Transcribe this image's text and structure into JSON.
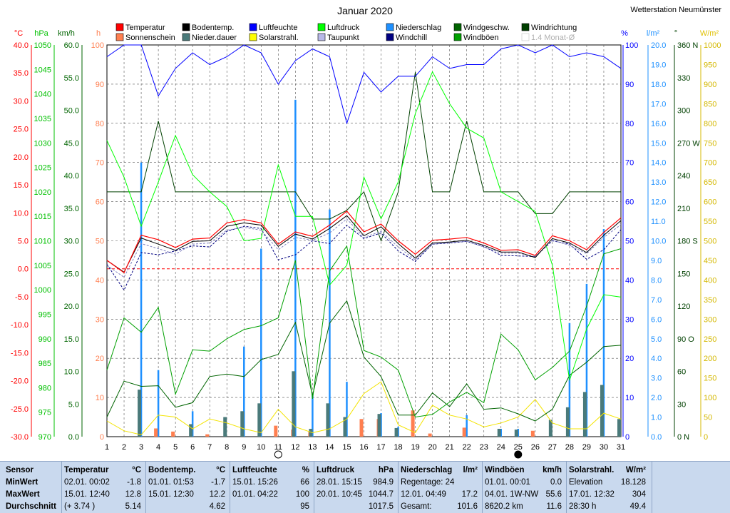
{
  "title": "Januar 2020",
  "station": "Wetterstation Neumünster",
  "legend": [
    {
      "label": "Temperatur",
      "color": "#ff0000"
    },
    {
      "label": "Sonnenschein",
      "color": "#ff7f50"
    },
    {
      "label": "Bodentemp.",
      "color": "#000000"
    },
    {
      "label": "Nieder.dauer",
      "color": "#4a7a7a"
    },
    {
      "label": "Luftfeuchte",
      "color": "#0000ff"
    },
    {
      "label": "Solarstrahl.",
      "color": "#ffff00"
    },
    {
      "label": "Luftdruck",
      "color": "#00ff00"
    },
    {
      "label": "Taupunkt",
      "color": "#b8b8e8"
    },
    {
      "label": "Niederschlag",
      "color": "#1e90ff"
    },
    {
      "label": "Windchill",
      "color": "#000080"
    },
    {
      "label": "Windgeschw.",
      "color": "#006400"
    },
    {
      "label": "Windböen",
      "color": "#00a000"
    },
    {
      "label": "Windrichtung",
      "color": "#004000"
    },
    {
      "label": "1.4 Monat-Ø",
      "color": "#c8c8c8"
    }
  ],
  "axis_units": {
    "temp": "°C",
    "press": "hPa",
    "wind": "km/h",
    "sun": "h",
    "hum": "%",
    "rain": "l/m²",
    "dir": "°",
    "solar": "W/m²"
  },
  "chart_data": {
    "type": "line",
    "x": [
      1,
      2,
      3,
      4,
      5,
      6,
      7,
      8,
      9,
      10,
      11,
      12,
      13,
      14,
      15,
      16,
      17,
      18,
      19,
      20,
      21,
      22,
      23,
      24,
      25,
      26,
      27,
      28,
      29,
      30,
      31
    ],
    "axes": {
      "temp": {
        "unit": "°C",
        "ylim": [
          -30,
          40
        ],
        "ticks": [
          "40.0",
          "35.0",
          "30.0",
          "25.0",
          "20.0",
          "15.0",
          "10.0",
          "5.0",
          "0.0",
          "-5.0",
          "-10.0",
          "-15.0",
          "-20.0",
          "-25.0",
          "-30.0"
        ]
      },
      "pressure": {
        "unit": "hPa",
        "ylim": [
          970,
          1050
        ],
        "ticks": [
          "1050",
          "1045",
          "1040",
          "1035",
          "1030",
          "1025",
          "1020",
          "1015",
          "1010",
          "1005",
          "1000",
          "995",
          "990",
          "985",
          "980",
          "975",
          "970"
        ]
      },
      "wind": {
        "unit": "km/h",
        "ylim": [
          0,
          60
        ],
        "ticks": [
          "60.0",
          "55.0",
          "50.0",
          "45.0",
          "40.0",
          "35.0",
          "30.0",
          "25.0",
          "20.0",
          "15.0",
          "10.0",
          "5.0",
          "0.0"
        ]
      },
      "sun": {
        "unit": "h",
        "ylim": [
          0,
          100
        ],
        "ticks": [
          "100",
          "90",
          "80",
          "70",
          "60",
          "50",
          "40",
          "30",
          "20",
          "10",
          "0"
        ]
      },
      "humidity": {
        "unit": "%",
        "ylim": [
          0,
          100
        ],
        "ticks": [
          "100",
          "90",
          "80",
          "70",
          "60",
          "50",
          "40",
          "30",
          "20",
          "10",
          "0"
        ]
      },
      "rain": {
        "unit": "l/m²",
        "ylim": [
          0,
          20
        ],
        "ticks": [
          "20.0",
          "19.0",
          "18.0",
          "17.0",
          "16.0",
          "15.0",
          "14.0",
          "13.0",
          "12.0",
          "11.0",
          "10.0",
          "9.0",
          "8.0",
          "7.0",
          "6.0",
          "5.0",
          "4.0",
          "3.0",
          "2.0",
          "1.0",
          "0.0"
        ]
      },
      "direction": {
        "unit": "°",
        "ylim": [
          0,
          360
        ],
        "ticks": [
          "360 N",
          "330",
          "300",
          "270 W",
          "240",
          "210",
          "180 S",
          "150",
          "120",
          "90 O",
          "60",
          "30",
          "0 N"
        ]
      },
      "solar": {
        "unit": "W/m²",
        "ylim": [
          0,
          1000
        ],
        "ticks": [
          "1000",
          "950",
          "900",
          "850",
          "800",
          "750",
          "700",
          "650",
          "600",
          "550",
          "500",
          "450",
          "400",
          "350",
          "300",
          "250",
          "200",
          "150",
          "100",
          "50",
          "0"
        ]
      }
    },
    "series": [
      {
        "name": "Temperatur",
        "axis": "temp",
        "color": "#ff0000",
        "values": [
          1.5,
          -0.7,
          6.0,
          5.2,
          3.8,
          5.3,
          5.5,
          8.2,
          8.8,
          8.2,
          4.4,
          6.6,
          5.8,
          7.8,
          10.3,
          6.6,
          8.0,
          5.0,
          2.6,
          5.1,
          5.3,
          5.6,
          4.6,
          3.3,
          3.4,
          2.4,
          5.9,
          5.0,
          3.4,
          6.5,
          9.1
        ]
      },
      {
        "name": "Bodentemp.",
        "axis": "temp",
        "color": "#000000",
        "values": [
          1.5,
          -0.6,
          5.5,
          4.4,
          3.3,
          4.9,
          5.0,
          7.6,
          8.2,
          7.8,
          4.0,
          6.2,
          5.3,
          7.2,
          9.5,
          5.9,
          7.5,
          4.5,
          1.9,
          4.6,
          4.8,
          5.1,
          4.2,
          3.0,
          3.0,
          2.0,
          5.4,
          4.6,
          2.9,
          6.0,
          8.6
        ]
      },
      {
        "name": "Taupunkt",
        "axis": "temp",
        "color": "#8080c0",
        "values": [
          0.6,
          -1.5,
          4.5,
          3.6,
          2.6,
          4.4,
          4.6,
          6.9,
          7.4,
          6.9,
          3.4,
          5.6,
          5.1,
          6.4,
          8.9,
          5.6,
          6.7,
          3.9,
          1.6,
          4.4,
          4.7,
          4.9,
          3.9,
          2.8,
          2.8,
          2.2,
          5.1,
          4.2,
          2.7,
          5.6,
          7.9
        ]
      },
      {
        "name": "Windchill",
        "axis": "temp",
        "color": "#000080",
        "values": [
          0.8,
          -3.8,
          2.9,
          2.5,
          3.2,
          4.1,
          3.9,
          6.7,
          7.6,
          7.2,
          1.6,
          2.5,
          5.0,
          4.5,
          7.8,
          5.4,
          6.4,
          3.2,
          1.3,
          4.4,
          4.6,
          4.9,
          4.0,
          2.4,
          2.3,
          2.2,
          5.0,
          4.4,
          1.7,
          3.4,
          7.0
        ]
      },
      {
        "name": "Luftdruck",
        "axis": "pressure",
        "color": "#00ff00",
        "values": [
          1030.5,
          1023,
          1013,
          1022,
          1031.5,
          1023.5,
          1020,
          1017,
          1010,
          1010.5,
          1025.5,
          1015,
          1015,
          1001,
          1005,
          1023,
          1014.5,
          1022,
          1036,
          1044.5,
          1038,
          1033,
          1031,
          1020,
          1018,
          1016,
          1005,
          981.5,
          992,
          999,
          998.5
        ]
      },
      {
        "name": "Luftfeuchte",
        "axis": "humidity",
        "color": "#0000ff",
        "values": [
          97,
          100,
          100,
          87,
          94,
          98,
          95,
          97,
          100,
          98,
          90,
          96,
          99,
          97,
          80,
          93,
          88,
          92,
          92,
          97,
          94,
          95,
          95,
          99,
          100,
          98,
          100,
          97,
          98,
          97,
          94
        ]
      },
      {
        "name": "Windgeschw.",
        "axis": "wind",
        "color": "#006400",
        "values": [
          3.0,
          8.5,
          7.7,
          7.8,
          4.5,
          5.2,
          9.2,
          9.6,
          9.2,
          11.8,
          12.6,
          17.5,
          6.3,
          17.4,
          20.8,
          12.2,
          9.2,
          3.3,
          3.3,
          6.7,
          4.6,
          8.1,
          4.2,
          4.4,
          3.5,
          2.4,
          4.2,
          9.4,
          11.4,
          13.8,
          14.0
        ]
      },
      {
        "name": "Windböen",
        "axis": "wind",
        "color": "#00a000",
        "values": [
          10.2,
          18.2,
          16.0,
          19.8,
          6.5,
          13.3,
          13.1,
          15.0,
          16.4,
          17.0,
          18.2,
          27.0,
          5.8,
          25.4,
          29.2,
          13.2,
          12.2,
          10.2,
          3.0,
          3.4,
          5.3,
          6.8,
          5.2,
          15.7,
          13.3,
          8.7,
          10.6,
          13.1,
          20.0,
          28.0,
          28.8
        ]
      },
      {
        "name": "Windrichtung",
        "axis": "direction",
        "color": "#004000",
        "values": [
          225,
          225,
          225,
          290,
          225,
          225,
          225,
          225,
          225,
          225,
          225,
          225,
          200,
          200,
          208,
          225,
          180,
          225,
          335,
          225,
          225,
          290,
          225,
          225,
          225,
          205,
          205,
          225,
          225,
          225,
          225
        ]
      },
      {
        "name": "Solarstrahl.",
        "axis": "solar",
        "color": "#f4e400",
        "values": [
          40,
          15,
          5,
          55,
          50,
          20,
          45,
          35,
          20,
          10,
          70,
          25,
          10,
          20,
          45,
          110,
          140,
          30,
          10,
          80,
          55,
          45,
          25,
          35,
          50,
          95,
          35,
          20,
          20,
          60,
          45
        ]
      }
    ],
    "bars": [
      {
        "name": "Niederschlag",
        "axis": "rain",
        "color": "#1e90ff",
        "values": [
          0,
          0,
          14.0,
          3.4,
          0,
          1.3,
          0,
          0,
          4.6,
          9.6,
          0,
          17.2,
          2.2,
          11.6,
          2.8,
          0,
          1.2,
          0.5,
          0,
          0,
          0,
          1.1,
          0,
          0.4,
          0.4,
          0,
          0,
          5.8,
          7.8,
          10.6,
          0
        ]
      },
      {
        "name": "Sonnenschein",
        "axis": "sun",
        "color": "#ff7f50",
        "values": [
          0,
          0,
          0,
          2.1,
          1.3,
          0,
          0.6,
          0,
          0,
          0,
          2.8,
          1.8,
          1.2,
          0,
          0,
          4.5,
          4.5,
          0,
          6.7,
          0.8,
          0,
          2.3,
          0,
          0,
          0,
          1.5,
          0,
          0,
          0,
          0,
          0
        ]
      },
      {
        "name": "Nieder.dauer",
        "axis": "sun",
        "color": "#4a7a7a",
        "values": [
          0,
          0,
          12.0,
          0,
          0,
          3.2,
          0,
          5.0,
          6.5,
          8.5,
          0,
          16.7,
          2.0,
          8.5,
          5.0,
          0,
          5.8,
          2.2,
          0,
          0,
          0,
          0,
          0,
          2.0,
          1.8,
          0,
          4.3,
          7.5,
          11.4,
          13.2,
          4.5
        ]
      }
    ],
    "reference_line": {
      "axis": "temp",
      "value": 0.0,
      "color": "#ff0000"
    },
    "moon_phases": [
      {
        "day": 11,
        "phase": "full"
      },
      {
        "day": 25,
        "phase": "new"
      }
    ]
  },
  "summary": {
    "row_labels": [
      "Sensor",
      "MinWert",
      "MaxWert",
      "Durchschnitt"
    ],
    "columns": [
      {
        "title": "Temperatur",
        "unit": "°C",
        "min": [
          "02.01.  00:02",
          "-1.8"
        ],
        "max": [
          "15.01.  12:40",
          "12.8"
        ],
        "avg": [
          "(+ 3.74 )",
          "5.14"
        ]
      },
      {
        "title": "Bodentemp.",
        "unit": "°C",
        "min": [
          "01.01.  01:53",
          "-1.7"
        ],
        "max": [
          "15.01.  12:30",
          "12.2"
        ],
        "avg": [
          "",
          "4.62"
        ]
      },
      {
        "title": "Luftfeuchte",
        "unit": "%",
        "min": [
          "15.01.  15:26",
          "66"
        ],
        "max": [
          "01.01.  04:22",
          "100"
        ],
        "avg": [
          "",
          "95"
        ]
      },
      {
        "title": "Luftdruck",
        "unit": "hPa",
        "min": [
          "28.01.  15:15",
          "984.9"
        ],
        "max": [
          "20.01.  10:45",
          "1044.7"
        ],
        "avg": [
          "",
          "1017.5"
        ]
      },
      {
        "title": "Niederschlag",
        "unit": "l/m²",
        "min": [
          "Regentage: 24",
          ""
        ],
        "max": [
          "12.01.  04:49",
          "17.2"
        ],
        "avg": [
          "Gesamt:",
          "101.6"
        ]
      },
      {
        "title": "Windböen",
        "unit": "km/h",
        "min": [
          "01.01.  00:01",
          "0.0"
        ],
        "max": [
          "04.01.  1W-NW",
          "55.6"
        ],
        "avg": [
          "8620.2 km",
          "11.6"
        ]
      },
      {
        "title": "Solarstrahl.",
        "unit": "W/m²",
        "min": [
          "Elevation",
          "18.128"
        ],
        "max": [
          "17.01.  12:32",
          "304"
        ],
        "avg": [
          "28:30 h",
          "49.4"
        ]
      }
    ]
  }
}
